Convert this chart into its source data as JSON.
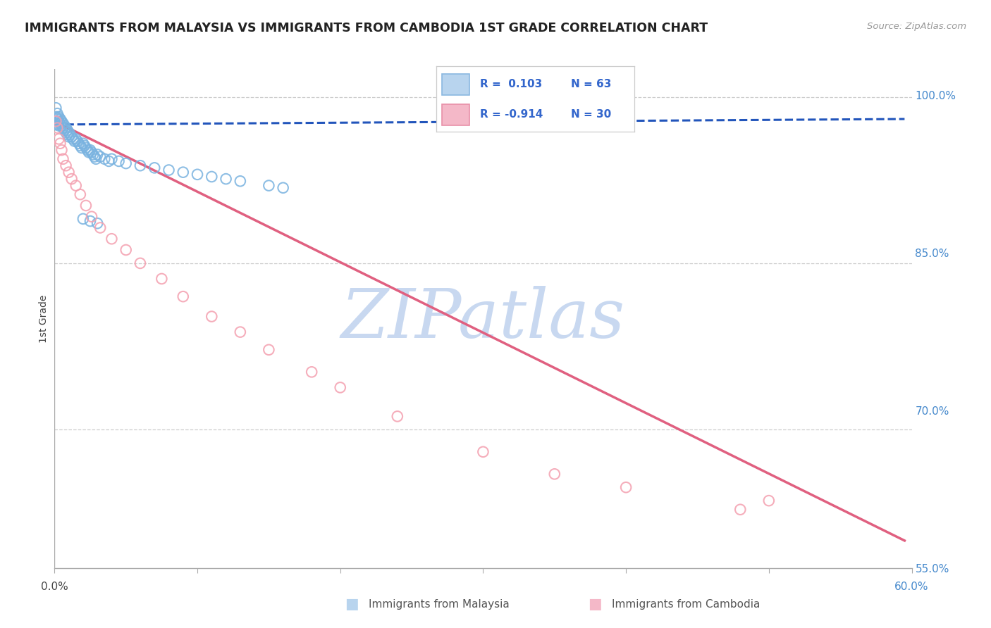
{
  "title": "IMMIGRANTS FROM MALAYSIA VS IMMIGRANTS FROM CAMBODIA 1ST GRADE CORRELATION CHART",
  "source": "Source: ZipAtlas.com",
  "ylabel": "1st Grade",
  "xlim": [
    0.0,
    0.6
  ],
  "ylim": [
    0.575,
    1.025
  ],
  "ytick_right_labels": [
    "100.0%",
    "85.0%",
    "70.0%",
    "55.0%"
  ],
  "ytick_right_values": [
    1.0,
    0.85,
    0.7,
    0.55
  ],
  "xtick_values": [
    0.0,
    0.1,
    0.2,
    0.3,
    0.4,
    0.5,
    0.6
  ],
  "watermark_color": "#c8d8f0",
  "malaysia_color": "#7ab3e0",
  "cambodia_color": "#f4a0b0",
  "malaysia_line_color": "#2255bb",
  "cambodia_line_color": "#e06080",
  "malaysia_points_x": [
    0.001,
    0.001,
    0.001,
    0.001,
    0.002,
    0.002,
    0.002,
    0.003,
    0.003,
    0.003,
    0.004,
    0.004,
    0.005,
    0.005,
    0.006,
    0.006,
    0.007,
    0.007,
    0.008,
    0.008,
    0.009,
    0.009,
    0.01,
    0.01,
    0.011,
    0.012,
    0.013,
    0.014,
    0.015,
    0.016,
    0.017,
    0.018,
    0.019,
    0.02,
    0.021,
    0.022,
    0.023,
    0.024,
    0.025,
    0.026,
    0.027,
    0.028,
    0.029,
    0.03,
    0.032,
    0.035,
    0.038,
    0.04,
    0.045,
    0.05,
    0.06,
    0.07,
    0.08,
    0.09,
    0.1,
    0.11,
    0.12,
    0.13,
    0.15,
    0.16,
    0.02,
    0.025,
    0.03
  ],
  "malaysia_points_y": [
    0.99,
    0.982,
    0.978,
    0.975,
    0.985,
    0.98,
    0.976,
    0.982,
    0.978,
    0.974,
    0.98,
    0.976,
    0.978,
    0.974,
    0.976,
    0.972,
    0.974,
    0.97,
    0.972,
    0.968,
    0.97,
    0.966,
    0.968,
    0.964,
    0.966,
    0.964,
    0.962,
    0.96,
    0.962,
    0.96,
    0.958,
    0.956,
    0.954,
    0.958,
    0.956,
    0.954,
    0.952,
    0.95,
    0.952,
    0.95,
    0.948,
    0.946,
    0.944,
    0.948,
    0.946,
    0.944,
    0.942,
    0.944,
    0.942,
    0.94,
    0.938,
    0.936,
    0.934,
    0.932,
    0.93,
    0.928,
    0.926,
    0.924,
    0.92,
    0.918,
    0.89,
    0.888,
    0.886
  ],
  "cambodia_points_x": [
    0.001,
    0.002,
    0.003,
    0.004,
    0.005,
    0.006,
    0.008,
    0.01,
    0.012,
    0.015,
    0.018,
    0.022,
    0.026,
    0.032,
    0.04,
    0.05,
    0.06,
    0.075,
    0.09,
    0.11,
    0.13,
    0.15,
    0.18,
    0.2,
    0.24,
    0.3,
    0.35,
    0.5,
    0.4,
    0.48
  ],
  "cambodia_points_y": [
    0.978,
    0.972,
    0.962,
    0.958,
    0.952,
    0.944,
    0.938,
    0.932,
    0.926,
    0.92,
    0.912,
    0.902,
    0.892,
    0.882,
    0.872,
    0.862,
    0.85,
    0.836,
    0.82,
    0.802,
    0.788,
    0.772,
    0.752,
    0.738,
    0.712,
    0.68,
    0.66,
    0.636,
    0.648,
    0.628
  ],
  "malaysia_trendline_x": [
    0.0,
    0.595
  ],
  "malaysia_trendline_y": [
    0.975,
    0.98
  ],
  "cambodia_trendline_x": [
    0.0,
    0.595
  ],
  "cambodia_trendline_y": [
    0.978,
    0.6
  ]
}
